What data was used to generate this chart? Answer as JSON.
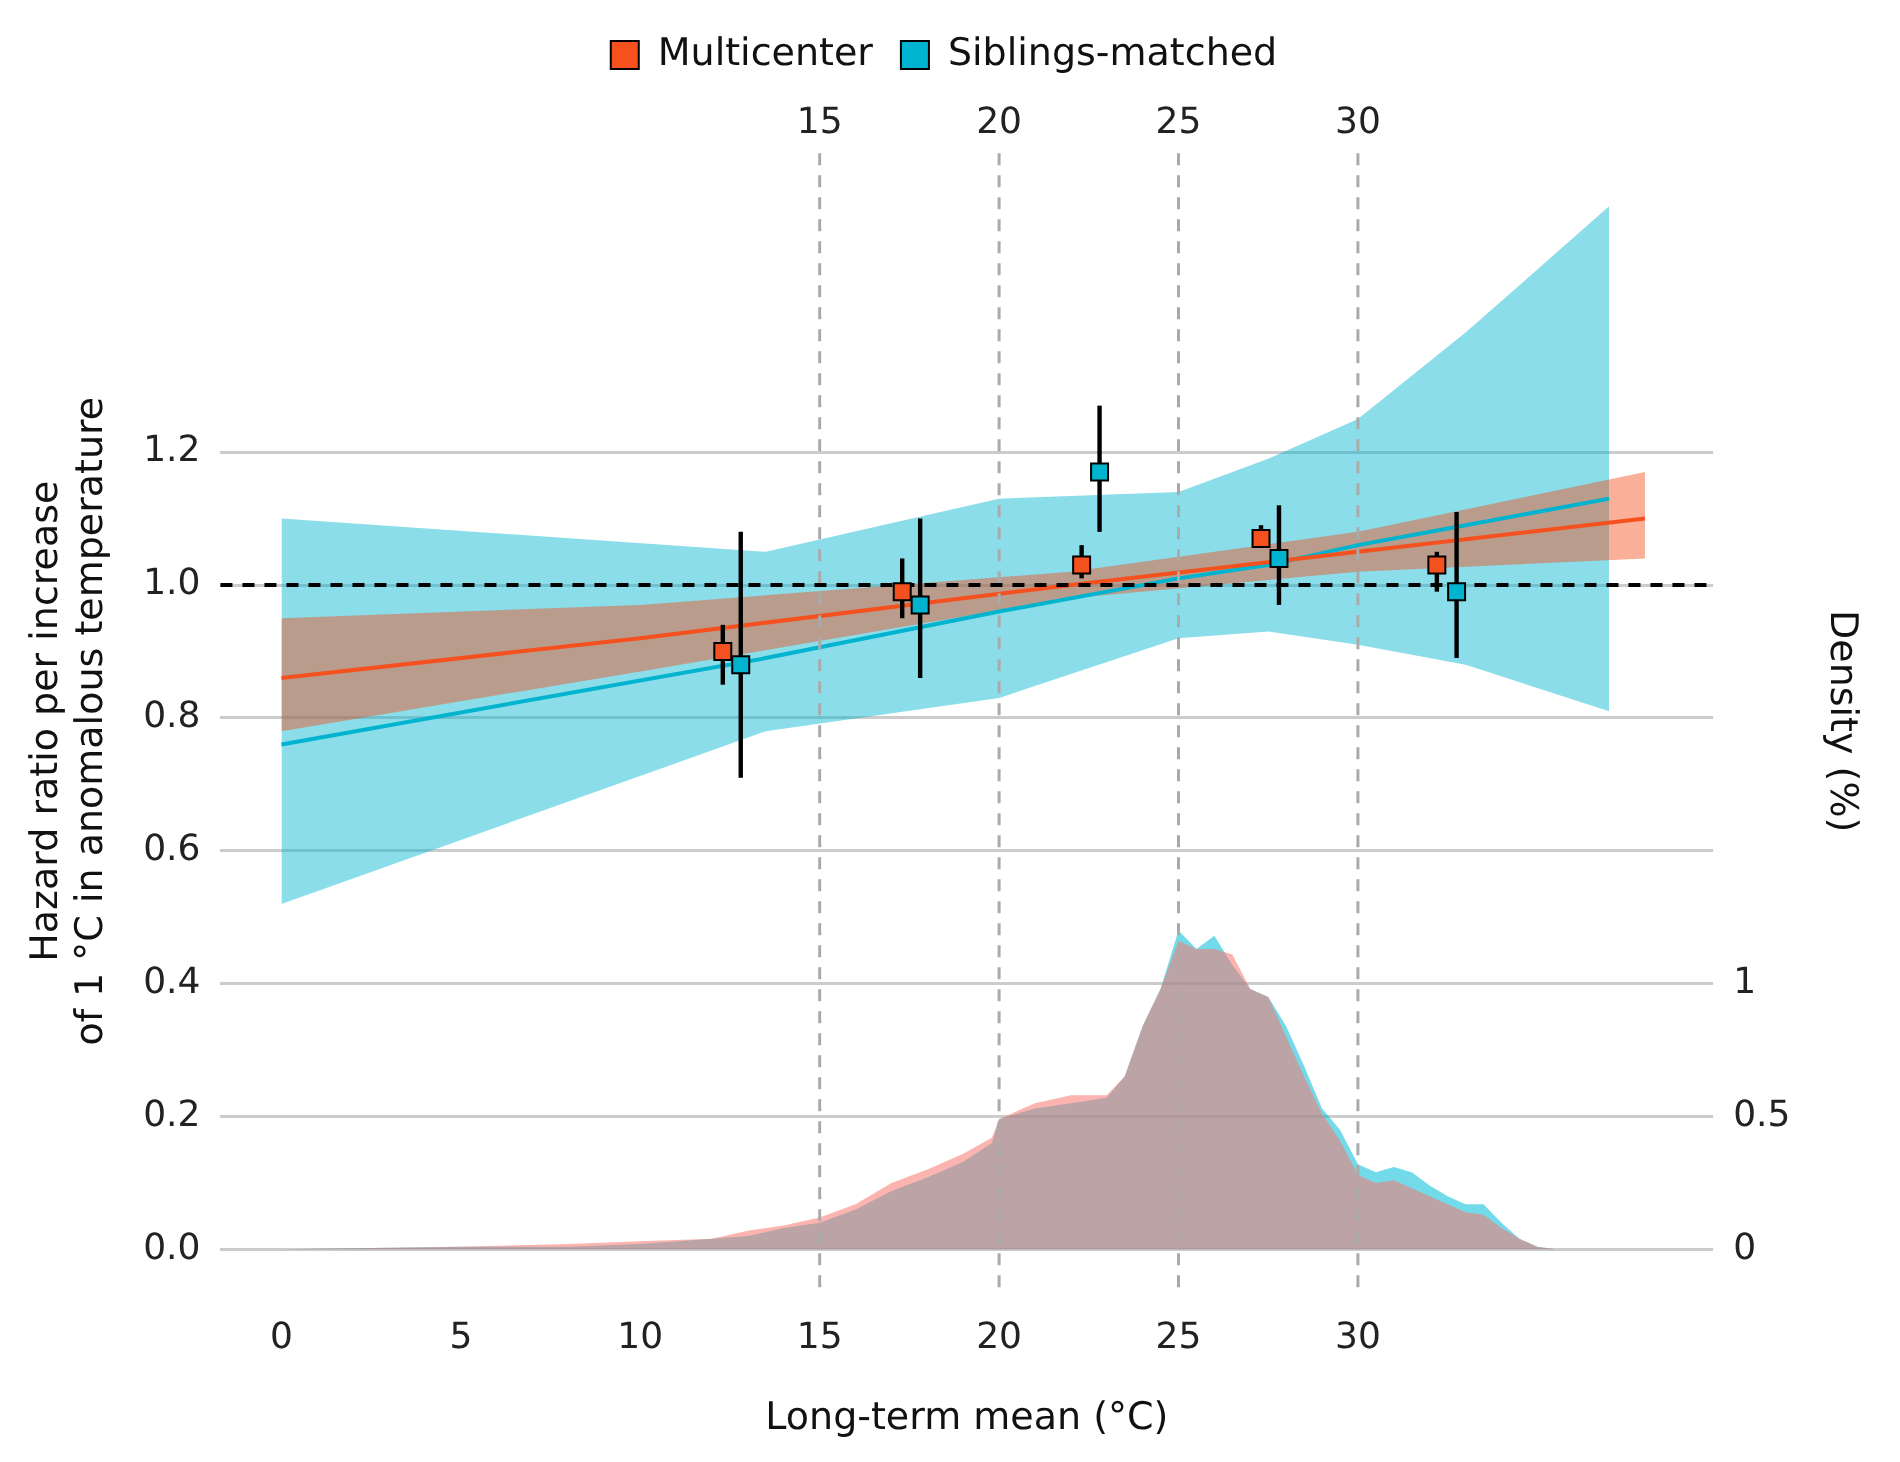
{
  "chart_data": {
    "type": "scatter",
    "xlabel": "Long-term mean (°C)",
    "ylabel": "Hazard ratio per increase\nof 1 °C in anomalous temperature",
    "y2label": "Density (%)",
    "xlim": [
      -1.7,
      39.9
    ],
    "xticks": [
      0,
      5,
      10,
      15,
      20,
      25,
      30
    ],
    "x2lim": [
      -1.7,
      39.9
    ],
    "x2ticks": [
      15,
      20,
      25,
      30
    ],
    "ylim": [
      -0.06,
      1.65
    ],
    "yticks": [
      {
        "value": 0,
        "label": "0.0"
      },
      {
        "value": 0.2,
        "label": "0.2"
      },
      {
        "value": 0.4,
        "label": "0.4"
      },
      {
        "value": 0.6,
        "label": "0.6"
      },
      {
        "value": 0.8,
        "label": "0.8"
      },
      {
        "value": 1,
        "label": "1.0"
      },
      {
        "value": 1.2,
        "label": "1.2"
      }
    ],
    "y2lim": [
      -0.15,
      4.125
    ],
    "y2ticks": [
      0,
      0.5,
      1
    ],
    "grid": "y",
    "legend": "top",
    "ref_lines": [
      {
        "axis": "x",
        "value": 15,
        "color": "#aaaaaa",
        "line_style": "dashed"
      },
      {
        "axis": "x",
        "value": 20,
        "color": "#aaaaaa",
        "line_style": "dashed"
      },
      {
        "axis": "x",
        "value": 25,
        "color": "#aaaaaa",
        "line_style": "dashed"
      },
      {
        "axis": "x",
        "value": 30,
        "color": "#aaaaaa",
        "line_style": "dashed"
      },
      {
        "axis": "y",
        "value": 1,
        "color": "#000000",
        "line_style": "dashed"
      }
    ],
    "series": [
      {
        "name": "Multicenter",
        "marker": "square",
        "color": "#f4511e",
        "x": [
          12.3,
          17.3,
          22.3,
          27.3,
          32.2
        ],
        "values": [
          0.9,
          0.99,
          1.03,
          1.07,
          1.03
        ],
        "errors": [
          [
            0.85,
            0.94
          ],
          [
            0.95,
            1.04
          ],
          [
            1.01,
            1.06
          ],
          [
            1.06,
            1.09
          ],
          [
            0.99,
            1.05
          ]
        ]
      },
      {
        "name": "Siblings-matched",
        "marker": "square",
        "color": "#00b4d0",
        "x": [
          12.8,
          17.8,
          22.8,
          27.8,
          32.75
        ],
        "values": [
          0.88,
          0.97,
          1.17,
          1.04,
          0.99
        ],
        "errors": [
          [
            0.71,
            1.08
          ],
          [
            0.86,
            1.1
          ],
          [
            1.08,
            1.27
          ],
          [
            0.97,
            1.12
          ],
          [
            0.89,
            1.11
          ]
        ]
      },
      {
        "type": "line",
        "color": "#f4511e",
        "x": [
          0,
          10,
          22,
          30,
          38
        ],
        "values": [
          0.86,
          0.92,
          1.0,
          1.05,
          1.1
        ],
        "lower": [
          0.78,
          0.87,
          0.98,
          1.02,
          1.04
        ],
        "upper": [
          0.95,
          0.97,
          1.02,
          1.08,
          1.17
        ]
      },
      {
        "type": "line",
        "color": "#00b4d0",
        "x": [
          0,
          13.5,
          20,
          25,
          27.5,
          30,
          33,
          37
        ],
        "values": [
          0.76,
          0.89,
          0.96,
          1.01,
          1.03,
          1.06,
          1.09,
          1.13
        ],
        "lower": [
          0.52,
          0.78,
          0.83,
          0.92,
          0.93,
          0.91,
          0.88,
          0.81
        ],
        "upper": [
          1.1,
          1.05,
          1.13,
          1.14,
          1.19,
          1.25,
          1.38,
          1.57
        ]
      },
      {
        "type": "area",
        "axis": "y2",
        "color": "#f8766d",
        "x": [
          0,
          5,
          8,
          10,
          12,
          13,
          14,
          15,
          16,
          17,
          18,
          19,
          19.8,
          20,
          21,
          22,
          23,
          23.5,
          24,
          24.5,
          25,
          25.5,
          26,
          26.5,
          27,
          27.5,
          28,
          28.5,
          29,
          29.5,
          30,
          30.5,
          31,
          31.5,
          32,
          32.5,
          33,
          33.5,
          34,
          34.5,
          35,
          35.5
        ],
        "values": [
          0,
          0.01,
          0.02,
          0.03,
          0.04,
          0.07,
          0.09,
          0.12,
          0.17,
          0.25,
          0.3,
          0.36,
          0.42,
          0.49,
          0.55,
          0.58,
          0.58,
          0.65,
          0.84,
          0.98,
          1.16,
          1.13,
          1.13,
          1.11,
          0.98,
          0.95,
          0.8,
          0.65,
          0.51,
          0.41,
          0.28,
          0.25,
          0.26,
          0.23,
          0.2,
          0.17,
          0.14,
          0.13,
          0.08,
          0.04,
          0.01,
          0
        ]
      },
      {
        "type": "area",
        "axis": "y2",
        "color": "#00bcd8",
        "x": [
          0,
          5,
          8,
          10,
          12,
          13,
          14,
          15,
          16,
          17,
          18,
          19,
          19.8,
          20,
          21,
          22,
          23,
          23.5,
          24,
          24.5,
          25,
          25.5,
          26,
          26.5,
          27,
          27.5,
          28,
          28.5,
          29,
          29.5,
          30,
          30.5,
          31,
          31.5,
          32,
          32.5,
          33,
          33.5,
          34,
          34.5,
          35,
          35.5
        ],
        "values": [
          0,
          0.01,
          0.01,
          0.02,
          0.04,
          0.05,
          0.08,
          0.1,
          0.15,
          0.22,
          0.27,
          0.33,
          0.4,
          0.49,
          0.53,
          0.55,
          0.57,
          0.65,
          0.84,
          0.98,
          1.2,
          1.13,
          1.18,
          1.07,
          0.98,
          0.95,
          0.84,
          0.69,
          0.53,
          0.45,
          0.32,
          0.29,
          0.31,
          0.29,
          0.24,
          0.2,
          0.17,
          0.17,
          0.1,
          0.04,
          0.01,
          0
        ]
      }
    ]
  }
}
